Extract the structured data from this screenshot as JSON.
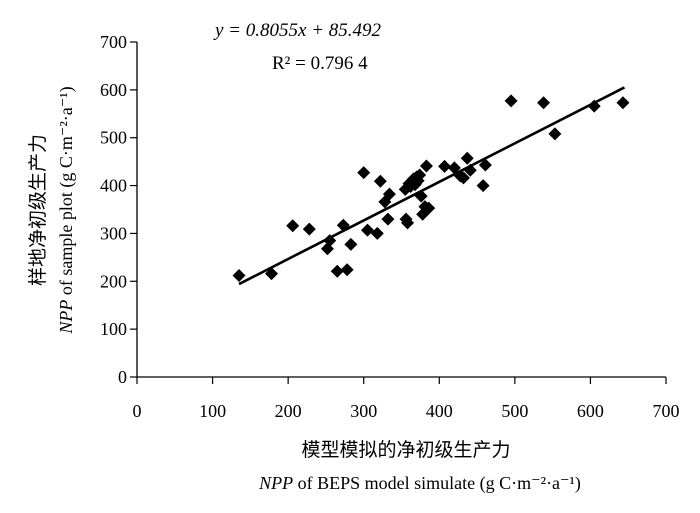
{
  "chart_data": {
    "type": "scatter",
    "x_ticks": [
      "0",
      "100",
      "200",
      "300",
      "400",
      "500",
      "600",
      "700"
    ],
    "y_ticks": [
      "0",
      "100",
      "200",
      "300",
      "400",
      "500",
      "600",
      "700"
    ],
    "xlim": [
      0,
      700
    ],
    "ylim": [
      0,
      700
    ],
    "grid": false,
    "xlabel_cn": "模型模拟的净初级生产力",
    "xlabel_en_var": "NPP",
    "xlabel_en_rest": " of BEPS model simulate (g C·m⁻²·a⁻¹)",
    "ylabel_cn": "样地净初级生产力",
    "ylabel_en_var": "NPP",
    "ylabel_en_rest": " of sample plot (g C·m⁻²·a⁻¹)",
    "equation": "y = 0.8055x + 85.492",
    "r_squared": "R² = 0.796 4",
    "trendline": {
      "slope": 0.8055,
      "intercept": 85.492,
      "x_range": [
        135,
        645
      ]
    },
    "marker": "diamond",
    "marker_color": "#000000",
    "points": [
      [
        135,
        212
      ],
      [
        178,
        216
      ],
      [
        206,
        316
      ],
      [
        228,
        309
      ],
      [
        252,
        268
      ],
      [
        255,
        285
      ],
      [
        265,
        221
      ],
      [
        273,
        317
      ],
      [
        278,
        224
      ],
      [
        283,
        277
      ],
      [
        300,
        427
      ],
      [
        305,
        307
      ],
      [
        318,
        300
      ],
      [
        322,
        409
      ],
      [
        328,
        366
      ],
      [
        332,
        330
      ],
      [
        334,
        382
      ],
      [
        355,
        392
      ],
      [
        356,
        330
      ],
      [
        358,
        322
      ],
      [
        360,
        404
      ],
      [
        362,
        398
      ],
      [
        364,
        409
      ],
      [
        366,
        414
      ],
      [
        368,
        402
      ],
      [
        370,
        418
      ],
      [
        372,
        410
      ],
      [
        374,
        422
      ],
      [
        376,
        378
      ],
      [
        378,
        340
      ],
      [
        381,
        356
      ],
      [
        383,
        441
      ],
      [
        386,
        353
      ],
      [
        407,
        440
      ],
      [
        420,
        437
      ],
      [
        428,
        420
      ],
      [
        432,
        416
      ],
      [
        437,
        457
      ],
      [
        441,
        432
      ],
      [
        458,
        400
      ],
      [
        461,
        443
      ],
      [
        495,
        577
      ],
      [
        538,
        573
      ],
      [
        553,
        508
      ],
      [
        605,
        566
      ],
      [
        643,
        573
      ]
    ]
  }
}
